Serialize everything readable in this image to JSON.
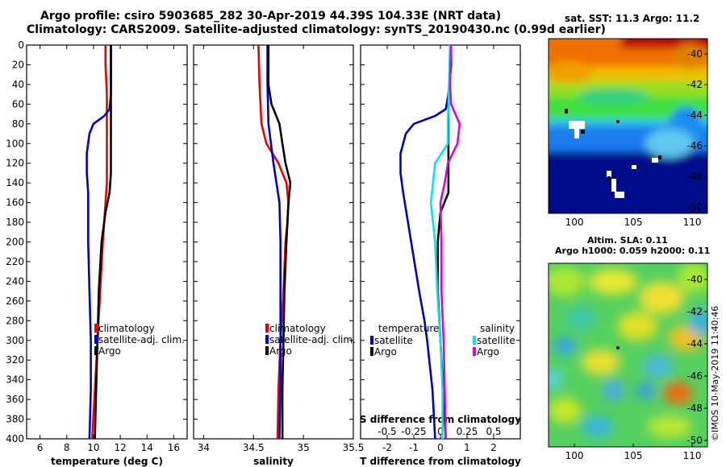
{
  "header": {
    "line1": "Argo profile: csiro 5903685_282 30-Apr-2019 44.39S 104.33E (NRT data)",
    "line2": "Climatology: CARS2009. Satellite-adjusted climatology: synTS_20190430.nc (0.99d earlier)"
  },
  "map_sst": {
    "title": "sat. SST: 11.3 Argo: 11.2",
    "lon_ticks": [
      "100",
      "105",
      "110"
    ],
    "lat_ticks": [
      "-40",
      "-42",
      "-44",
      "-46",
      "-48",
      "-50"
    ]
  },
  "map_sla": {
    "title_line1": "Altim. SLA: 0.11",
    "title_line2": "Argo h1000: 0.059 h2000: 0.11",
    "lon_ticks": [
      "100",
      "105",
      "110"
    ],
    "lat_ticks": [
      "-40",
      "-42",
      "-44",
      "-46",
      "-48",
      "-50"
    ]
  },
  "credit": "©IMOS 10-May-2019 11:40:46",
  "colors": {
    "climatology": "#ee0000",
    "satellite": "#0000cc",
    "argo": "#000000",
    "sal_satellite": "#00e8e8",
    "sal_argo": "#e000e0"
  },
  "chart_data": [
    {
      "type": "line",
      "name": "temperature-profile",
      "xlabel": "temperature (deg C)",
      "ylabel": "depth",
      "xlim": [
        5,
        17
      ],
      "ylim": [
        400,
        0
      ],
      "x_ticks": [
        "6",
        "8",
        "10",
        "12",
        "14",
        "16"
      ],
      "y_ticks": [
        "0",
        "20",
        "40",
        "60",
        "80",
        "100",
        "120",
        "140",
        "160",
        "180",
        "200",
        "220",
        "240",
        "260",
        "280",
        "300",
        "320",
        "340",
        "360",
        "380",
        "400"
      ],
      "legend": [
        "climatology",
        "satellite-adj. clim.",
        "Argo"
      ],
      "legend_position": "lower-right",
      "series": [
        {
          "name": "climatology",
          "depth": [
            0,
            20,
            50,
            80,
            100,
            120,
            140,
            160,
            200,
            250,
            300,
            350,
            400
          ],
          "values": [
            10.9,
            10.9,
            11.0,
            11.0,
            11.0,
            11.0,
            11.0,
            10.9,
            10.7,
            10.5,
            10.3,
            10.1,
            9.9
          ]
        },
        {
          "name": "satellite-adj. clim.",
          "depth": [
            0,
            20,
            50,
            65,
            72,
            80,
            90,
            110,
            130,
            150,
            200,
            250,
            300,
            350,
            400
          ],
          "values": [
            11.3,
            11.3,
            11.3,
            11.2,
            10.8,
            10.0,
            9.7,
            9.5,
            9.5,
            9.6,
            9.6,
            9.7,
            9.8,
            9.8,
            9.7
          ]
        },
        {
          "name": "Argo",
          "depth": [
            0,
            20,
            50,
            60,
            80,
            100,
            130,
            150,
            170,
            200,
            250,
            300,
            350,
            400
          ],
          "values": [
            11.3,
            11.3,
            11.3,
            11.3,
            11.3,
            11.3,
            11.3,
            11.2,
            10.9,
            10.6,
            10.4,
            10.3,
            10.2,
            10.1
          ]
        }
      ]
    },
    {
      "type": "line",
      "name": "salinity-profile",
      "xlabel": "salinity",
      "xlim": [
        33.9,
        35.5
      ],
      "ylim": [
        400,
        0
      ],
      "x_ticks": [
        "34",
        "34.5",
        "35",
        "35.5"
      ],
      "legend": [
        "climatology",
        "satellite-adj. clim.",
        "Argo"
      ],
      "legend_position": "lower-right",
      "series": [
        {
          "name": "climatology",
          "depth": [
            0,
            40,
            80,
            100,
            120,
            140,
            160,
            180,
            200,
            250,
            300,
            350,
            400
          ],
          "values": [
            34.55,
            34.56,
            34.58,
            34.63,
            34.75,
            34.83,
            34.85,
            34.84,
            34.82,
            34.8,
            34.77,
            34.75,
            34.74
          ]
        },
        {
          "name": "satellite-adj. clim.",
          "depth": [
            0,
            40,
            80,
            120,
            160,
            200,
            250,
            300,
            350,
            400
          ],
          "values": [
            34.64,
            34.64,
            34.65,
            34.7,
            34.76,
            34.77,
            34.77,
            34.77,
            34.77,
            34.76
          ]
        },
        {
          "name": "Argo",
          "depth": [
            0,
            40,
            60,
            70,
            80,
            100,
            120,
            140,
            150,
            160,
            200,
            250,
            300,
            350,
            400
          ],
          "values": [
            34.65,
            34.65,
            34.68,
            34.72,
            34.76,
            34.79,
            34.82,
            34.87,
            34.86,
            34.85,
            34.83,
            34.81,
            34.8,
            34.79,
            34.79
          ]
        }
      ]
    },
    {
      "type": "line",
      "name": "difference-profile",
      "xlabel": "T difference from climatology",
      "x2label": "S difference from climatology",
      "xlim": [
        -3,
        3
      ],
      "x2lim": [
        -0.75,
        0.75
      ],
      "ylim": [
        400,
        0
      ],
      "x_ticks": [
        "-2",
        "-1",
        "0",
        "1",
        "2"
      ],
      "x2_ticks": [
        "-0.5",
        "-0.25",
        "0",
        "0.25",
        "0.5"
      ],
      "legend_temperature": {
        "title": "temperature",
        "items": [
          "satellite",
          "Argo"
        ]
      },
      "legend_salinity": {
        "title": "salinity",
        "items": [
          "satellite",
          "Argo"
        ]
      },
      "series": [
        {
          "name": "temperature satellite",
          "axis": "T",
          "depth": [
            0,
            20,
            50,
            65,
            72,
            80,
            90,
            110,
            130,
            150,
            200,
            250,
            280,
            300,
            350,
            400
          ],
          "values": [
            0.4,
            0.4,
            0.3,
            0.2,
            -0.2,
            -1.0,
            -1.3,
            -1.5,
            -1.5,
            -1.4,
            -1.1,
            -0.8,
            -0.6,
            -0.5,
            -0.3,
            -0.2
          ]
        },
        {
          "name": "temperature Argo",
          "axis": "T",
          "depth": [
            0,
            20,
            50,
            60,
            80,
            100,
            130,
            150,
            170,
            200,
            250,
            300,
            350,
            400
          ],
          "values": [
            0.4,
            0.4,
            0.3,
            0.3,
            0.3,
            0.3,
            0.3,
            0.3,
            0.0,
            -0.1,
            -0.1,
            0.0,
            0.1,
            0.2
          ]
        },
        {
          "name": "salinity satellite",
          "axis": "S",
          "depth": [
            0,
            40,
            80,
            100,
            120,
            140,
            160,
            180,
            200,
            250,
            300,
            350,
            400
          ],
          "values": [
            0.09,
            0.08,
            0.07,
            0.07,
            -0.05,
            -0.07,
            -0.09,
            -0.07,
            -0.05,
            -0.03,
            -0.0,
            0.02,
            0.02
          ]
        },
        {
          "name": "salinity Argo",
          "axis": "S",
          "depth": [
            0,
            40,
            60,
            80,
            100,
            120,
            140,
            160,
            200,
            250,
            300,
            350,
            400
          ],
          "values": [
            0.1,
            0.09,
            0.1,
            0.18,
            0.16,
            0.07,
            0.04,
            0.0,
            0.01,
            0.01,
            0.03,
            0.04,
            0.05
          ]
        }
      ]
    }
  ]
}
